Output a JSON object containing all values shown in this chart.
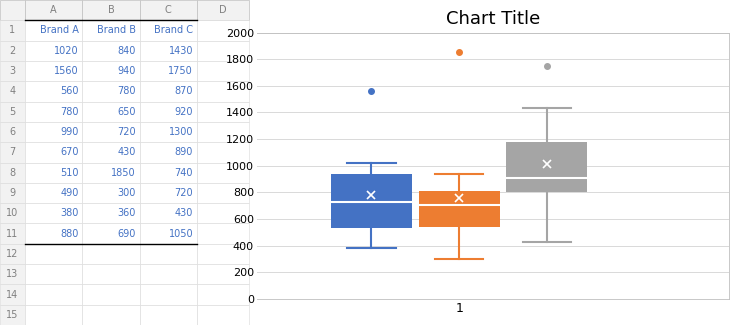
{
  "brand_a": [
    1020,
    1560,
    560,
    780,
    990,
    670,
    510,
    490,
    380,
    880
  ],
  "brand_b": [
    840,
    940,
    780,
    650,
    720,
    430,
    1850,
    300,
    360,
    690
  ],
  "brand_c": [
    1430,
    1750,
    870,
    920,
    1300,
    890,
    740,
    720,
    430,
    1050
  ],
  "title": "Chart Title",
  "xlabel": "1",
  "ylim": [
    0,
    2000
  ],
  "yticks": [
    0,
    200,
    400,
    600,
    800,
    1000,
    1200,
    1400,
    1600,
    1800,
    2000
  ],
  "colors": [
    "#4472C4",
    "#ED7D31",
    "#A5A5A5"
  ],
  "box_width": 0.12,
  "positions": [
    0.87,
    1.0,
    1.13
  ],
  "fig_bg": "#FFFFFF",
  "plot_bg": "#FFFFFF",
  "grid_color": "#D9D9D9",
  "title_fontsize": 13,
  "tick_fontsize": 8,
  "xlabel_fontsize": 9,
  "table_headers": [
    "Brand A",
    "Brand B",
    "Brand C"
  ],
  "table_data": [
    [
      1020,
      840,
      1430
    ],
    [
      1560,
      940,
      1750
    ],
    [
      560,
      780,
      870
    ],
    [
      780,
      650,
      920
    ],
    [
      990,
      720,
      1300
    ],
    [
      670,
      430,
      890
    ],
    [
      510,
      1850,
      740
    ],
    [
      490,
      300,
      720
    ],
    [
      380,
      360,
      430
    ],
    [
      880,
      690,
      1050
    ]
  ],
  "col_header_color": "#D6DCE4",
  "row_header_color": "#F2F2F2",
  "cell_bg_color": "#FFFFFF",
  "table_text_color": "#4472C4",
  "border_color": "#000000",
  "row_numbers": [
    1,
    2,
    3,
    4,
    5,
    6,
    7,
    8,
    9,
    10,
    11,
    12,
    13,
    14,
    15
  ],
  "col_letters": [
    "A",
    "B",
    "C",
    "D"
  ]
}
